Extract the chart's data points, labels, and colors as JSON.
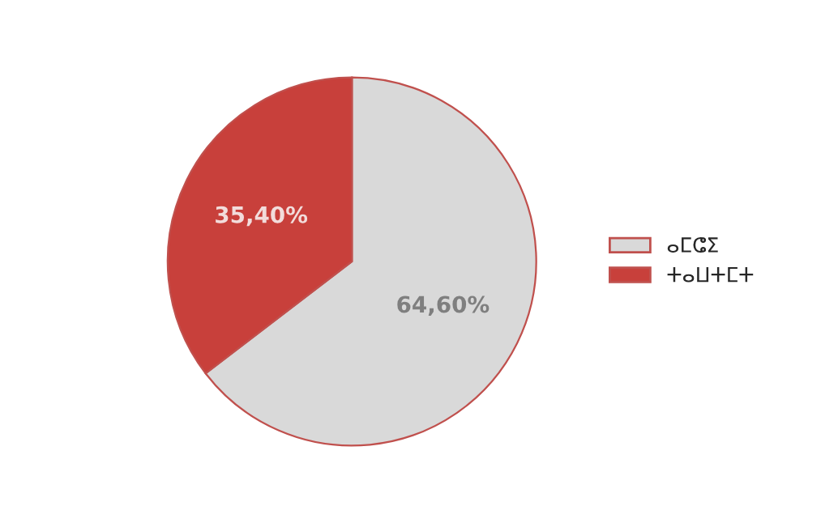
{
  "chart_data": {
    "type": "pie",
    "categories": [
      "ⴰⵎⵛⵉ",
      "ⵜⴰⵡⵜⵎⵜ"
    ],
    "values": [
      64.6,
      35.4
    ],
    "value_labels": [
      "64,60%",
      "35,40%"
    ],
    "colors": [
      "#d9d9d9",
      "#c8403b"
    ],
    "legend": "right"
  }
}
